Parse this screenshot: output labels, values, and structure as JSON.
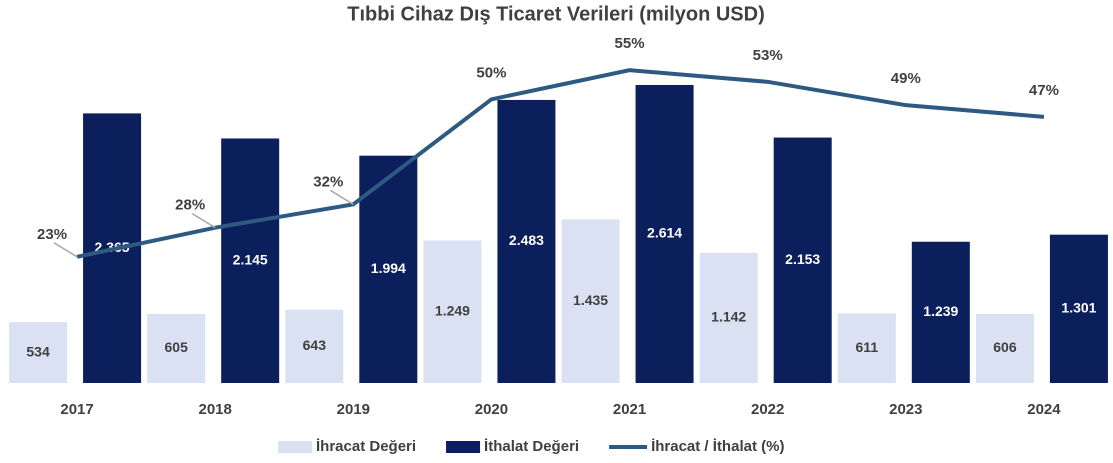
{
  "chart_data": {
    "type": "bar",
    "title": "Tıbbi Cihaz Dış Ticaret Verileri (milyon USD)",
    "categories": [
      "2017",
      "2018",
      "2019",
      "2020",
      "2021",
      "2022",
      "2023",
      "2024"
    ],
    "ylim": [
      0,
      3000
    ],
    "y2lim": [
      0,
      60
    ],
    "legend": "bottom",
    "series": [
      {
        "name": "İhracat Değeri",
        "color": "#d9e1f2",
        "type": "bar",
        "values": [
          534,
          605,
          643,
          1249,
          1435,
          1142,
          611,
          606
        ],
        "value_labels": [
          "534",
          "605",
          "643",
          "1.249",
          "1.435",
          "1.142",
          "611",
          "606"
        ]
      },
      {
        "name": "İthalat Değeri",
        "color": "#0b1f5c",
        "type": "bar",
        "values": [
          2365,
          2145,
          1994,
          2483,
          2614,
          2153,
          1239,
          1301
        ],
        "value_labels": [
          "2.365",
          "2.145",
          "1.994",
          "2.483",
          "2.614",
          "2.153",
          "1.239",
          "1.301"
        ]
      },
      {
        "name": "İhracat / İthalat (%)",
        "color": "#2e5a82",
        "type": "line",
        "axis": "y2",
        "values": [
          23,
          28,
          32,
          50,
          55,
          53,
          49,
          47
        ],
        "value_labels": [
          "23%",
          "28%",
          "32%",
          "50%",
          "55%",
          "53%",
          "49%",
          "47%"
        ]
      }
    ]
  }
}
